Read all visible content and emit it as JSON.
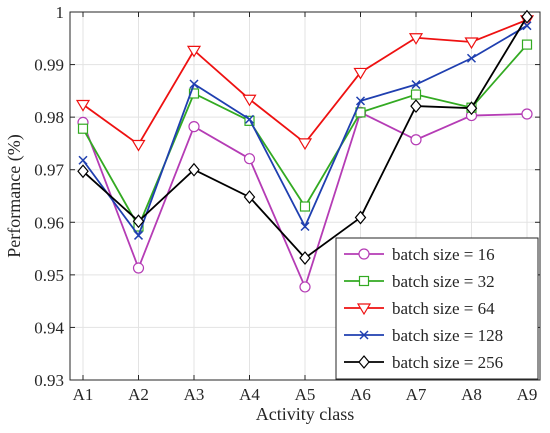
{
  "chart_data": {
    "type": "line",
    "title": "",
    "xlabel": "Activity class",
    "ylabel": "Performance (%)",
    "categories": [
      "A1",
      "A2",
      "A3",
      "A4",
      "A5",
      "A6",
      "A7",
      "A8",
      "A9"
    ],
    "ylim": [
      0.93,
      1.0
    ],
    "yticks": [
      0.93,
      0.94,
      0.95,
      0.96,
      0.97,
      0.98,
      0.99,
      1
    ],
    "ytick_labels": [
      "0.93",
      "0.94",
      "0.95",
      "0.96",
      "0.97",
      "0.98",
      "0.99",
      "1"
    ],
    "grid": true,
    "legend_position": "bottom-right",
    "series": [
      {
        "name": "batch size = 16",
        "color": "#b53cb5",
        "marker": "circle",
        "values": [
          0.979,
          0.9513,
          0.9782,
          0.9721,
          0.9477,
          0.9809,
          0.9757,
          0.9803,
          0.9806
        ]
      },
      {
        "name": "batch size = 32",
        "color": "#33aa22",
        "marker": "square",
        "values": [
          0.9778,
          0.9592,
          0.9845,
          0.9793,
          0.963,
          0.9809,
          0.9843,
          0.9818,
          0.9938
        ]
      },
      {
        "name": "batch size = 64",
        "color": "#ee1111",
        "marker": "triangle-down",
        "values": [
          0.9824,
          0.9748,
          0.9927,
          0.9834,
          0.9751,
          0.9885,
          0.9951,
          0.9943,
          0.9985
        ]
      },
      {
        "name": "batch size = 128",
        "color": "#1f3fb0",
        "marker": "x",
        "values": [
          0.9718,
          0.9575,
          0.9863,
          0.9796,
          0.9592,
          0.9831,
          0.9862,
          0.9912,
          0.9974
        ]
      },
      {
        "name": "batch size = 256",
        "color": "#000000",
        "marker": "diamond",
        "values": [
          0.9697,
          0.9602,
          0.97,
          0.9648,
          0.9532,
          0.9609,
          0.9821,
          0.9817,
          0.9991
        ]
      }
    ]
  }
}
